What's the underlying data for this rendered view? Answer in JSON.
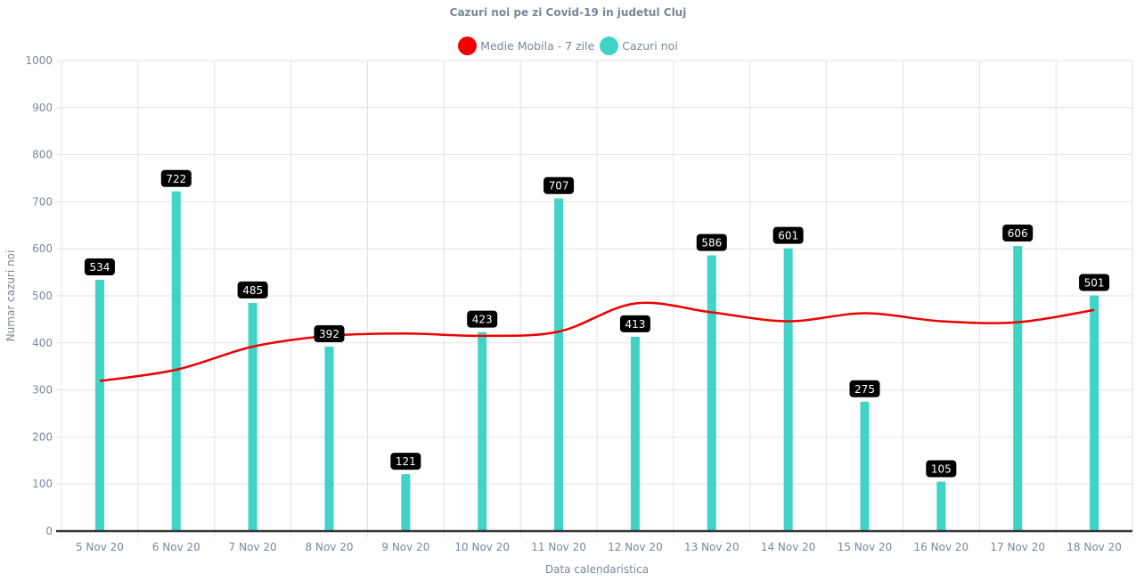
{
  "chart_data": {
    "type": "bar",
    "title": "Cazuri noi pe zi Covid-19 in judetul Cluj",
    "xlabel": "Data calendaristica",
    "ylabel": "Numar cazuri noi",
    "ylim": [
      0,
      1000
    ],
    "yticks": [
      0,
      100,
      200,
      300,
      400,
      500,
      600,
      700,
      800,
      900,
      1000
    ],
    "grid": true,
    "legend_position": "top-center",
    "categories": [
      "5 Nov 20",
      "6 Nov 20",
      "7 Nov 20",
      "8 Nov 20",
      "9 Nov 20",
      "10 Nov 20",
      "11 Nov 20",
      "12 Nov 20",
      "13 Nov 20",
      "14 Nov 20",
      "15 Nov 20",
      "16 Nov 20",
      "17 Nov 20",
      "18 Nov 20"
    ],
    "series": [
      {
        "name": "Medie Mobila - 7 zile",
        "type": "line",
        "color": "#ee0000",
        "values": [
          319,
          343,
          392,
          415,
          420,
          415,
          424,
          484,
          465,
          446,
          463,
          446,
          444,
          470
        ]
      },
      {
        "name": "Cazuri noi",
        "type": "bar",
        "color": "#40d3c8",
        "values": [
          534,
          722,
          485,
          392,
          121,
          423,
          707,
          413,
          586,
          601,
          275,
          105,
          606,
          501
        ],
        "data_labels": true
      }
    ]
  }
}
